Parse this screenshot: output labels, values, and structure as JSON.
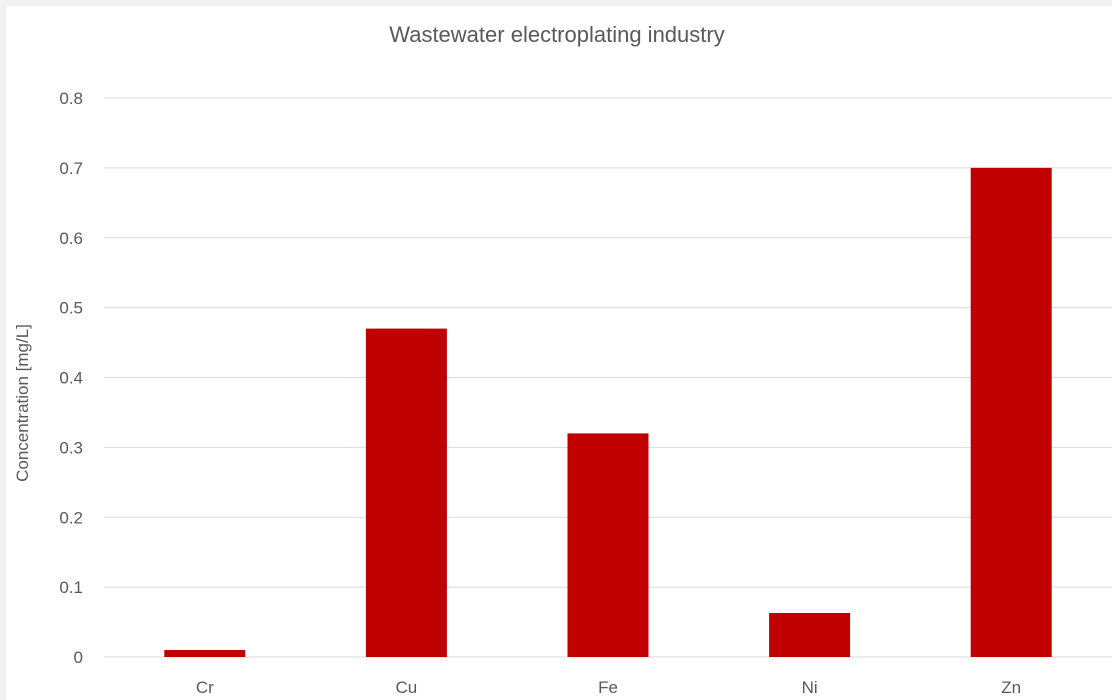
{
  "chart_data": {
    "type": "bar",
    "title": "Wastewater electroplating industry",
    "xlabel": "",
    "ylabel": "Concentration [mg/L]",
    "categories": [
      "Cr",
      "Cu",
      "Fe",
      "Ni",
      "Zn"
    ],
    "values": [
      0.01,
      0.47,
      0.32,
      0.063,
      0.7
    ],
    "ylim": [
      0,
      0.8
    ],
    "yticks": [
      "0",
      "0.1",
      "0.2",
      "0.3",
      "0.4",
      "0.5",
      "0.6",
      "0.7",
      "0.8"
    ],
    "grid": true,
    "legend": "none",
    "bar_color": "#c00000",
    "gridline_color": "#d9d9d9",
    "text_color": "#595959"
  }
}
